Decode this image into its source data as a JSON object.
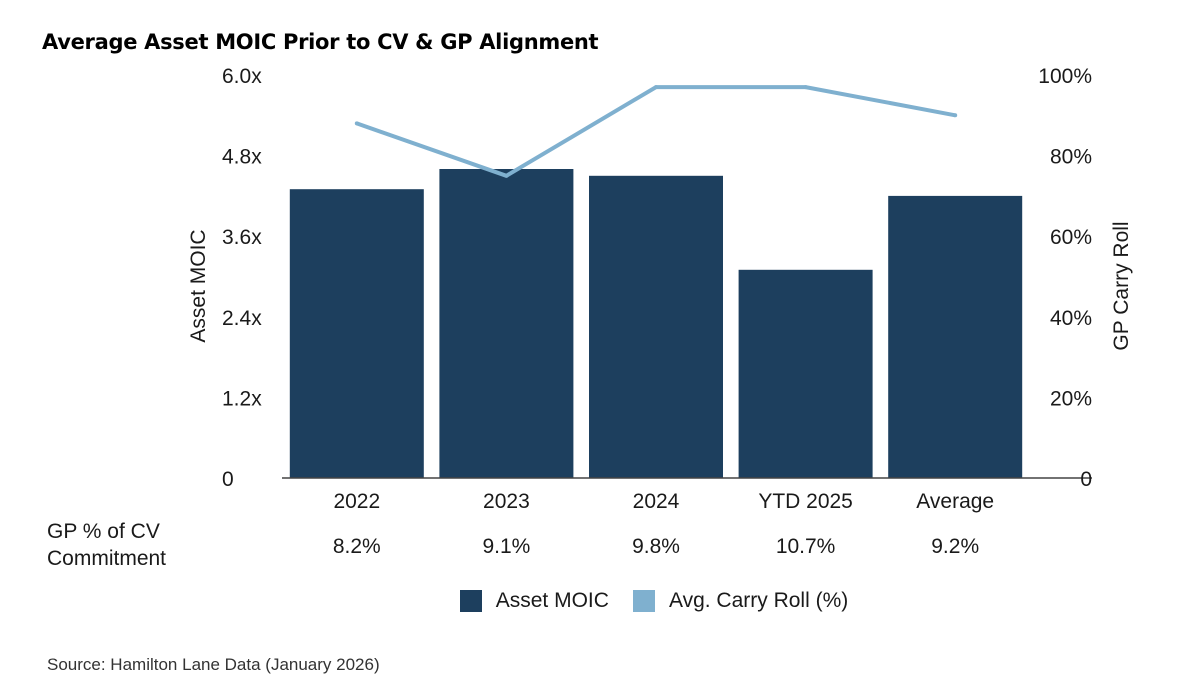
{
  "title": "Average Asset MOIC Prior to CV & GP Alignment",
  "source": "Source: Hamilton Lane Data (January 2026)",
  "table": {
    "row_label_lines": [
      "GP % of CV",
      "Commitment"
    ],
    "values": [
      "8.2%",
      "9.1%",
      "9.8%",
      "10.7%",
      "9.2%"
    ]
  },
  "legend": {
    "items": [
      {
        "label": "Asset MOIC",
        "color": "#1d3f5e"
      },
      {
        "label": "Avg. Carry Roll (%)",
        "color": "#7fb0cf"
      }
    ]
  },
  "chart_data": {
    "type": "bar",
    "categories": [
      "2022",
      "2023",
      "2024",
      "YTD 2025",
      "Average"
    ],
    "series": [
      {
        "name": "Asset MOIC",
        "type": "bar",
        "axis": "left",
        "color": "#1d3f5e",
        "values": [
          4.3,
          4.6,
          4.5,
          3.1,
          4.2
        ]
      },
      {
        "name": "Avg. Carry Roll (%)",
        "type": "line",
        "axis": "right",
        "color": "#7fb0cf",
        "values": [
          88,
          75,
          97,
          97,
          90
        ]
      }
    ],
    "ylabel": "Asset MOIC",
    "y2label": "GP Carry Roll",
    "ylim": [
      0,
      6
    ],
    "y2lim": [
      0,
      100
    ],
    "yticks": [
      "0",
      "1.2x",
      "2.4x",
      "3.6x",
      "4.8x",
      "6.0x"
    ],
    "y2ticks": [
      "0",
      "20%",
      "40%",
      "60%",
      "80%",
      "100%"
    ],
    "grid": false
  }
}
